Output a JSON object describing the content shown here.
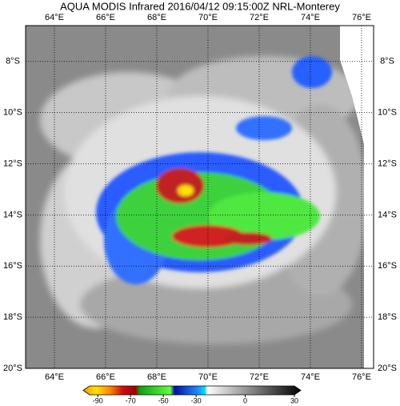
{
  "map": {
    "title": "AQUA MODIS Infrared 2016/04/12 09:15:00Z NRL-Monterey",
    "lonlim": [
      62.875,
      76.47
    ],
    "latlim": [
      -6.6,
      -20
    ],
    "lon_ticks": [
      {
        "value": 64,
        "label": "64°E"
      },
      {
        "value": 66,
        "label": "66°E"
      },
      {
        "value": 68,
        "label": "68°E"
      },
      {
        "value": 70,
        "label": "70°E"
      },
      {
        "value": 72,
        "label": "72°E"
      },
      {
        "value": 74,
        "label": "74°E"
      },
      {
        "value": 76,
        "label": "76°E"
      }
    ],
    "lat_ticks": [
      {
        "value": -8,
        "label": "8°S"
      },
      {
        "value": -10,
        "label": "10°S"
      },
      {
        "value": -12,
        "label": "12°S"
      },
      {
        "value": -14,
        "label": "14°S"
      },
      {
        "value": -16,
        "label": "16°S"
      },
      {
        "value": -18,
        "label": "18°S"
      },
      {
        "value": -20,
        "label": "20°S"
      }
    ],
    "colorbar": {
      "lim": [
        -95,
        30
      ],
      "ticks": [
        -90,
        -70,
        -50,
        -30,
        0,
        30
      ]
    }
  }
}
